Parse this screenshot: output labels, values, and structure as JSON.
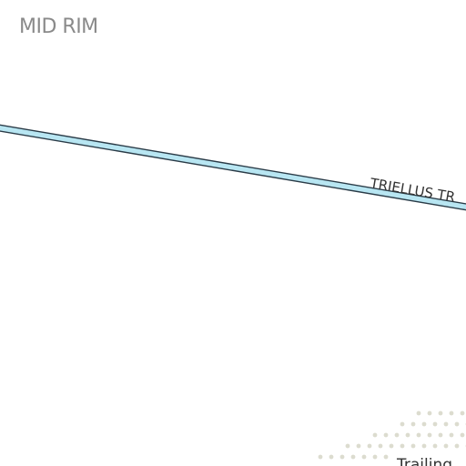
{
  "map": {
    "background_color": "#ffffff",
    "district_label": {
      "text": "MID RIM",
      "color": "#8a8a8a"
    },
    "roads": [
      {
        "name": "TRIELLUS TR",
        "fill_color": "#b8e6f2",
        "casing_color": "#2a3b47"
      }
    ],
    "trail_area": {
      "label": "Trailing",
      "label_color": "#333333",
      "pattern_color": "#dcdccf"
    }
  }
}
